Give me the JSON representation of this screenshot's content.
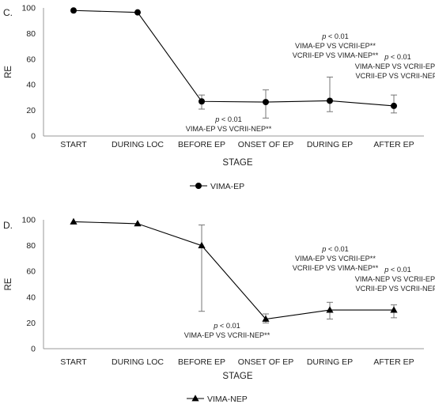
{
  "chart_data": [
    {
      "type": "line",
      "panel_label": "C.",
      "categories": [
        "START",
        "DURING LOC",
        "BEFORE EP",
        "ONSET OF EP",
        "DURING EP",
        "AFTER EP"
      ],
      "series": [
        {
          "name": "VIMA-EP",
          "marker": "circle",
          "values": [
            98,
            96.5,
            27,
            26.5,
            27.5,
            23.5
          ],
          "error_low": [
            null,
            null,
            21,
            14,
            19,
            18
          ],
          "error_high": [
            null,
            null,
            32,
            36,
            46,
            32
          ]
        }
      ],
      "xlabel": "STAGE",
      "ylabel": "RE",
      "ylim": [
        0,
        100
      ],
      "yticks": [
        "0",
        "20",
        "40",
        "60",
        "80",
        "100"
      ],
      "legend_position": "bottom-center",
      "annotations": [
        {
          "category": "BEFORE EP",
          "lines": [
            "p < 0.01",
            "VIMA-EP VS VCRII-NEP**"
          ]
        },
        {
          "category": "DURING EP",
          "lines": [
            "p < 0.01",
            "VIMA-EP VS VCRII-EP**",
            "VCRII-EP VS VIMA-NEP**"
          ]
        },
        {
          "category": "AFTER EP",
          "lines": [
            "p < 0.01",
            "VIMA-NEP VS VCRII-EP**",
            "VCRII-EP VS VCRII-NEP*"
          ]
        }
      ]
    },
    {
      "type": "line",
      "panel_label": "D.",
      "categories": [
        "START",
        "DURING LOC",
        "BEFORE EP",
        "ONSET OF EP",
        "DURING EP",
        "AFTER EP"
      ],
      "series": [
        {
          "name": "VIMA-NEP",
          "marker": "triangle",
          "values": [
            98.5,
            97,
            80,
            23,
            30,
            30
          ],
          "error_low": [
            null,
            null,
            29,
            20,
            23,
            24
          ],
          "error_high": [
            null,
            null,
            96,
            27,
            36,
            34
          ]
        }
      ],
      "xlabel": "STAGE",
      "ylabel": "RE",
      "ylim": [
        0,
        100
      ],
      "yticks": [
        "0",
        "20",
        "40",
        "60",
        "80",
        "100"
      ],
      "legend_position": "bottom-center",
      "annotations": [
        {
          "category": "BEFORE EP",
          "lines": [
            "p < 0.01",
            "VIMA-EP VS VCRII-NEP**"
          ]
        },
        {
          "category": "DURING EP",
          "lines": [
            "p < 0.01",
            "VIMA-EP VS VCRII-EP**",
            "VCRII-EP VS VIMA-NEP**"
          ]
        },
        {
          "category": "AFTER EP",
          "lines": [
            "p < 0.01",
            "VIMA-NEP VS VCRII-EP**",
            "VCRII-EP VS VCRII-NEP*"
          ]
        }
      ]
    }
  ]
}
